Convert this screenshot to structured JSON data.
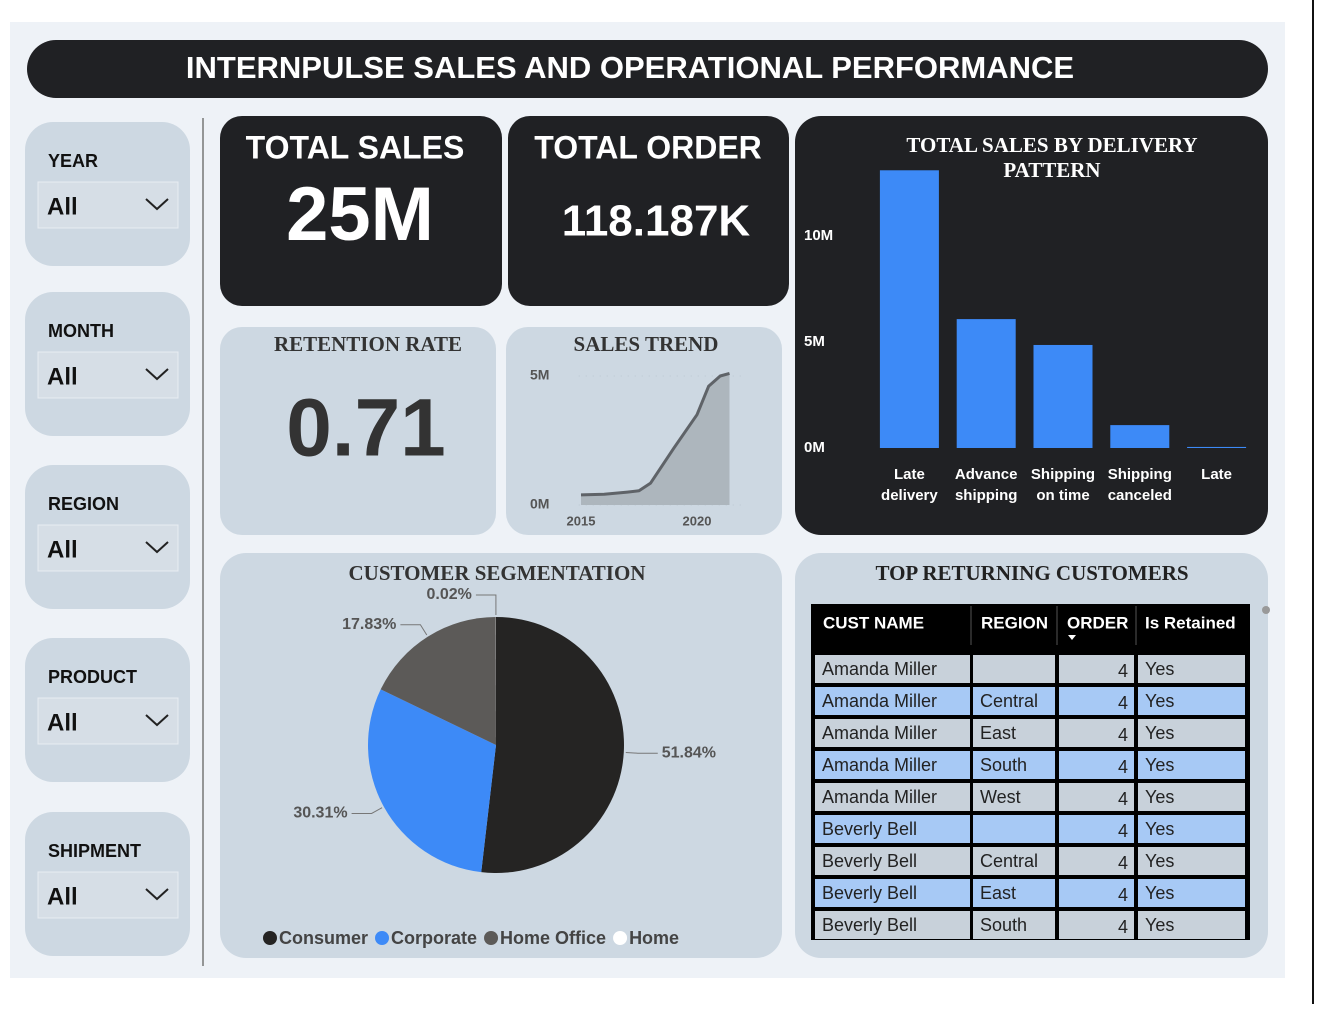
{
  "header": {
    "title": "INTERNPULSE SALES AND OPERATIONAL PERFORMANCE"
  },
  "filters": [
    {
      "label": "YEAR",
      "value": "All"
    },
    {
      "label": "MONTH",
      "value": "All"
    },
    {
      "label": "REGION",
      "value": "All"
    },
    {
      "label": "PRODUCT",
      "value": "All"
    },
    {
      "label": "SHIPMENT",
      "value": "All"
    }
  ],
  "kpis": [
    {
      "title": "TOTAL SALES",
      "value": "25M"
    },
    {
      "title": "TOTAL ORDER",
      "value": "118.187K"
    },
    {
      "title": "RETENTION RATE",
      "value": "0.71"
    }
  ],
  "chart_data": [
    {
      "type": "bar",
      "title": "TOTAL SALES  BY DELIVERY PATTERN",
      "categories": [
        "Late delivery",
        "Advance shipping",
        "Shipping on time",
        "Shipping canceled",
        "Late"
      ],
      "values": [
        13.1,
        6.08,
        4.86,
        1.08,
        0.05
      ],
      "color": "#3d8af7",
      "ylim": [
        0,
        13.5
      ],
      "yticks": [
        {
          "value": 0,
          "label": "0M"
        },
        {
          "value": 5,
          "label": "5M"
        },
        {
          "value": 10,
          "label": "10M"
        }
      ]
    },
    {
      "type": "area",
      "title": "SALES TREND",
      "x": [
        2015,
        2016,
        2017,
        2017.5,
        2018,
        2019,
        2020,
        2020.5,
        2021,
        2021.4
      ],
      "values": [
        0.39,
        0.42,
        0.5,
        0.55,
        0.85,
        2.2,
        3.5,
        4.6,
        5.0,
        5.1
      ],
      "color": "#5f6368",
      "xlim": [
        2014.9,
        2021.9
      ],
      "ylim": [
        0,
        5.2
      ],
      "xticks": [
        2015,
        2020
      ],
      "yticks": [
        {
          "value": 0,
          "label": "0M"
        },
        {
          "value": 5,
          "label": "5M"
        }
      ]
    },
    {
      "type": "pie",
      "title": "CUSTOMER SEGMENTATION",
      "categories": [
        "Consumer",
        "Corporate",
        "Home Office",
        "Home"
      ],
      "values": [
        51.84,
        30.31,
        17.83,
        0.02
      ],
      "value_labels": [
        "51.84%",
        "30.31%",
        "17.83%",
        "0.02%"
      ],
      "colors": [
        "#252423",
        "#3d8af7",
        "#5c5a58",
        "#ffffff"
      ]
    }
  ],
  "table": {
    "title": "TOP RETURNING CUSTOMERS",
    "columns": [
      "CUST NAME",
      "REGION",
      "ORDER",
      "Is Retained"
    ],
    "rows": [
      [
        "Amanda Miller",
        null,
        4,
        "Yes"
      ],
      [
        "Amanda Miller",
        "Central",
        4,
        "Yes"
      ],
      [
        "Amanda Miller",
        "East",
        4,
        "Yes"
      ],
      [
        "Amanda Miller",
        "South",
        4,
        "Yes"
      ],
      [
        "Amanda Miller",
        "West",
        4,
        "Yes"
      ],
      [
        "Beverly Bell",
        null,
        4,
        "Yes"
      ],
      [
        "Beverly Bell",
        "Central",
        4,
        "Yes"
      ],
      [
        "Beverly Bell",
        "East",
        4,
        "Yes"
      ],
      [
        "Beverly Bell",
        "South",
        4,
        "Yes"
      ]
    ]
  }
}
